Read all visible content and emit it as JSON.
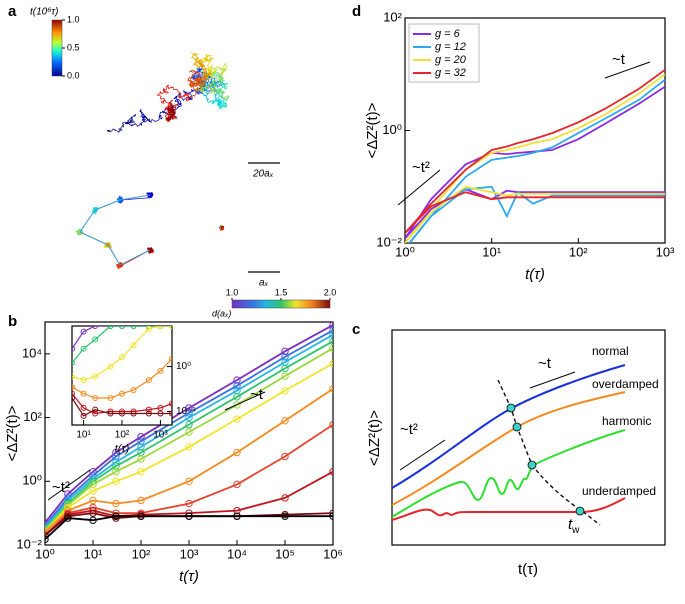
{
  "panel_labels": [
    "a",
    "b",
    "c",
    "d"
  ],
  "trajectories": {
    "colorbar_title": "t(10⁶τ)",
    "colorbar_ticks": [
      {
        "value": 0,
        "label": "0.0"
      },
      {
        "value": 0.5,
        "label": "0.5"
      },
      {
        "value": 1,
        "label": "1.0"
      }
    ],
    "colorbar_range": [
      0,
      1
    ],
    "scale_bars": [
      "20aₓ",
      "aₓ"
    ]
  },
  "chart_data": [
    {
      "type": "line",
      "log_x": true,
      "log_y": true,
      "markers": true,
      "xlabel": "t(τ)",
      "ylabel": "<ΔZ²(t)>",
      "annotations": [
        "~t²",
        "~t"
      ],
      "colorbar_title": "d(aₓ)",
      "colorbar_ticks": [
        {
          "value": 1,
          "label": "1.0"
        },
        {
          "value": 1.5,
          "label": "1.5"
        },
        {
          "value": 2,
          "label": "2.0"
        }
      ],
      "colorbar_range": [
        1,
        2
      ],
      "xlim": [
        1,
        1000000
      ],
      "ylim": [
        0.01,
        100000
      ],
      "xticks": [
        {
          "value": 1,
          "label": "10⁰"
        },
        {
          "value": 10,
          "label": "10¹"
        },
        {
          "value": 100,
          "label": "10²"
        },
        {
          "value": 1000,
          "label": "10³"
        },
        {
          "value": 10000,
          "label": "10⁴"
        },
        {
          "value": 100000,
          "label": "10⁵"
        },
        {
          "value": 1000000,
          "label": "10⁶"
        }
      ],
      "yticks": [
        {
          "value": 0.01,
          "label": "10⁻²"
        },
        {
          "value": 1,
          "label": "10⁰"
        },
        {
          "value": 100,
          "label": "10²"
        },
        {
          "value": 10000,
          "label": "10⁴"
        }
      ],
      "x": [
        1,
        3,
        10,
        30,
        100,
        1000,
        10000,
        100000,
        1000000
      ],
      "series": [
        {
          "color": "#7b2fbe",
          "values": [
            0.05,
            0.4,
            2,
            8,
            25,
            200,
            1500,
            12000,
            80000
          ]
        },
        {
          "color": "#3a6fe0",
          "values": [
            0.04,
            0.3,
            1.5,
            6,
            18,
            140,
            1000,
            8000,
            55000
          ]
        },
        {
          "color": "#22b7e0",
          "values": [
            0.035,
            0.25,
            1.2,
            4,
            12,
            100,
            700,
            5500,
            40000
          ]
        },
        {
          "color": "#2ec46a",
          "values": [
            0.03,
            0.2,
            1,
            3,
            8,
            60,
            450,
            3500,
            25000
          ]
        },
        {
          "color": "#9ad93a",
          "values": [
            0.03,
            0.18,
            0.8,
            2,
            5,
            35,
            250,
            2000,
            15000
          ]
        },
        {
          "color": "#f2e42a",
          "values": [
            0.025,
            0.15,
            0.5,
            1,
            2,
            12,
            90,
            700,
            5000
          ]
        },
        {
          "color": "#f58a1f",
          "values": [
            0.025,
            0.12,
            0.25,
            0.2,
            0.25,
            1,
            8,
            80,
            800
          ]
        },
        {
          "color": "#e8412a",
          "values": [
            0.02,
            0.1,
            0.15,
            0.1,
            0.1,
            0.2,
            0.8,
            6,
            60
          ]
        },
        {
          "color": "#c2141c",
          "values": [
            0.02,
            0.09,
            0.12,
            0.08,
            0.09,
            0.1,
            0.12,
            0.3,
            2
          ]
        },
        {
          "color": "#7a0a10",
          "values": [
            0.02,
            0.08,
            0.1,
            0.07,
            0.08,
            0.08,
            0.08,
            0.09,
            0.1
          ]
        },
        {
          "color": "#000000",
          "values": [
            0.015,
            0.07,
            0.06,
            0.08,
            0.08,
            0.08,
            0.08,
            0.08,
            0.08
          ]
        }
      ]
    },
    {
      "type": "line",
      "log_x": true,
      "log_y": true,
      "markers": true,
      "xlabel": "t(τ)",
      "xlim": [
        5,
        2000
      ],
      "ylim": [
        0.05,
        8
      ],
      "xticks": [
        {
          "value": 10,
          "label": "10¹"
        },
        {
          "value": 100,
          "label": "10²"
        },
        {
          "value": 1000,
          "label": "10³"
        }
      ],
      "yticks": [
        {
          "value": 0.1,
          "label": "10⁻¹"
        },
        {
          "value": 1,
          "label": "10⁰"
        }
      ],
      "x": [
        5,
        10,
        20,
        50,
        100,
        200,
        500,
        1000,
        2000
      ],
      "series": [
        {
          "color": "#7b2fbe",
          "values": [
            2.5,
            6,
            8,
            8,
            8,
            8,
            8,
            8,
            8
          ]
        },
        {
          "color": "#2ec46a",
          "values": [
            1.2,
            2.5,
            4,
            8,
            8,
            8,
            8,
            8,
            8
          ]
        },
        {
          "color": "#f2e42a",
          "values": [
            0.6,
            0.5,
            0.6,
            1,
            1.6,
            3,
            7,
            8,
            8
          ]
        },
        {
          "color": "#f58a1f",
          "values": [
            0.35,
            0.25,
            0.2,
            0.2,
            0.25,
            0.3,
            0.5,
            0.8,
            1.5
          ]
        },
        {
          "color": "#c2141c",
          "values": [
            0.25,
            0.12,
            0.09,
            0.1,
            0.1,
            0.1,
            0.11,
            0.12,
            0.15
          ]
        },
        {
          "color": "#7a0a10",
          "values": [
            0.2,
            0.08,
            0.11,
            0.09,
            0.09,
            0.09,
            0.09,
            0.09,
            0.09
          ]
        }
      ]
    },
    {
      "type": "line",
      "log_x": true,
      "log_y": true,
      "markers": false,
      "xlabel": "t(τ)",
      "ylabel": "<ΔZ²(t)>",
      "annotations": [
        "~t²",
        "~t"
      ],
      "legend": "upper left",
      "xlim": [
        1,
        1000
      ],
      "ylim": [
        0.01,
        100
      ],
      "xticks": [
        {
          "value": 1,
          "label": "10⁰"
        },
        {
          "value": 10,
          "label": "10¹"
        },
        {
          "value": 100,
          "label": "10²"
        },
        {
          "value": 1000,
          "label": "10³"
        }
      ],
      "yticks": [
        {
          "value": 0.01,
          "label": "10⁻²"
        },
        {
          "value": 1,
          "label": "10⁰"
        },
        {
          "value": 100,
          "label": "10²"
        }
      ],
      "x": [
        1,
        2,
        5,
        10,
        15,
        20,
        30,
        50,
        100,
        200,
        500,
        1000
      ],
      "series": [
        {
          "name": "g = 6",
          "color": "#8a2be2",
          "values": [
            0.012,
            0.06,
            0.25,
            0.4,
            0.38,
            0.4,
            0.42,
            0.45,
            0.7,
            1.3,
            3,
            6
          ]
        },
        {
          "name": "g = 12",
          "color": "#2ea8f0",
          "values": [
            0.008,
            0.03,
            0.15,
            0.3,
            0.33,
            0.35,
            0.4,
            0.5,
            0.9,
            1.6,
            3.5,
            8
          ]
        },
        {
          "name": "g = 20",
          "color": "#f0e03a",
          "values": [
            0.01,
            0.04,
            0.2,
            0.4,
            0.45,
            0.5,
            0.6,
            0.7,
            1.1,
            1.9,
            4.5,
            10
          ]
        },
        {
          "name": "g = 32",
          "color": "#e8242c",
          "values": [
            0.015,
            0.05,
            0.2,
            0.45,
            0.52,
            0.6,
            0.7,
            0.9,
            1.4,
            2.4,
            5.5,
            12
          ]
        },
        {
          "color": "#8a2be2",
          "values": [
            0.012,
            0.04,
            0.09,
            0.06,
            0.085,
            0.08,
            0.08,
            0.08,
            0.08,
            0.08,
            0.08,
            0.08
          ]
        },
        {
          "color": "#2ea8f0",
          "values": [
            0.008,
            0.03,
            0.09,
            0.1,
            0.03,
            0.08,
            0.05,
            0.07,
            0.07,
            0.07,
            0.07,
            0.07
          ]
        },
        {
          "color": "#f0e03a",
          "values": [
            0.01,
            0.035,
            0.1,
            0.08,
            0.07,
            0.075,
            0.075,
            0.075,
            0.075,
            0.075,
            0.075,
            0.075
          ]
        },
        {
          "color": "#e8242c",
          "values": [
            0.015,
            0.045,
            0.08,
            0.06,
            0.065,
            0.065,
            0.065,
            0.065,
            0.065,
            0.065,
            0.065,
            0.065
          ]
        }
      ]
    }
  ],
  "schematic": {
    "xlabel": "t(τ)",
    "ylabel": "<ΔZ²(t)>",
    "curves": [
      "normal",
      "overdamped",
      "harmonic",
      "underdamped"
    ],
    "annotations": [
      "~t²",
      "~t"
    ],
    "tw": {
      "base": "t",
      "sub": "w"
    }
  }
}
